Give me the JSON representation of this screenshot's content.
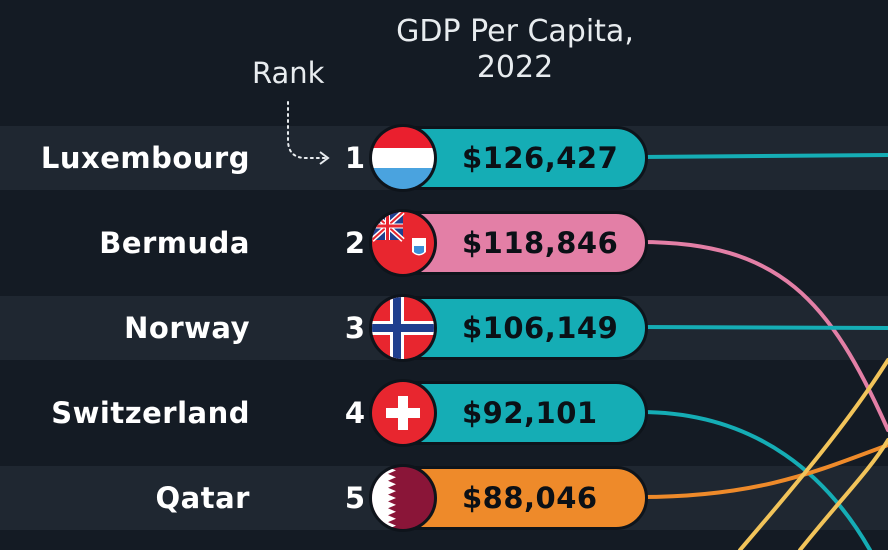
{
  "header": {
    "title_line1": "GDP Per Capita,",
    "title_line2": "2022",
    "rank_label": "Rank"
  },
  "colors": {
    "background": "#141b24",
    "band": "#1f2731",
    "teal": "#15adb5",
    "pink": "#e37fa6",
    "orange": "#ee8a2a",
    "yellow": "#f2c45a"
  },
  "chart_data": {
    "type": "bar",
    "title": "GDP Per Capita, 2022",
    "categories": [
      "Luxembourg",
      "Bermuda",
      "Norway",
      "Switzerland",
      "Qatar"
    ],
    "ranks": [
      "1",
      "2",
      "3",
      "4",
      "5"
    ],
    "values": [
      126427,
      118846,
      106149,
      92101,
      88046
    ],
    "value_labels": [
      "$126,427",
      "$118,846",
      "$106,149",
      "$92,101",
      "$88,046"
    ],
    "pill_colors": [
      "#15adb5",
      "#e37fa6",
      "#15adb5",
      "#15adb5",
      "#ee8a2a"
    ],
    "flags": [
      "luxembourg-flag",
      "bermuda-flag",
      "norway-flag",
      "switzerland-flag",
      "qatar-flag"
    ]
  }
}
